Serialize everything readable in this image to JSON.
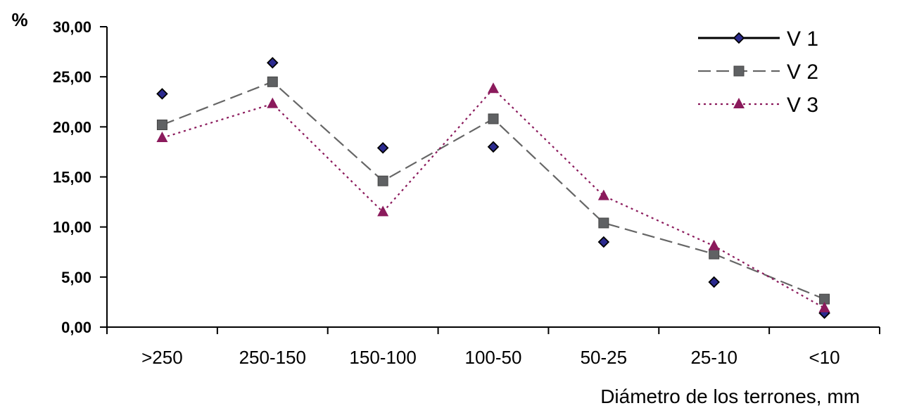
{
  "chart_data": {
    "type": "line",
    "y_unit": "%",
    "xlabel": "Diámetro de los terrones",
    "xlabel_unit": ", mm",
    "categories": [
      ">250",
      "250-150",
      "150-100",
      "100-50",
      "50-25",
      "25-10",
      "<10"
    ],
    "ylim": [
      0,
      30
    ],
    "yticks": [
      "0,00",
      "5,00",
      "10,00",
      "15,00",
      "20,00",
      "25,00",
      "30,00"
    ],
    "ytick_values": [
      0,
      5,
      10,
      15,
      20,
      25,
      30
    ],
    "grid": false,
    "legend_position": "top-right",
    "series": [
      {
        "name": "V 1",
        "values": [
          23.3,
          26.4,
          17.9,
          18.0,
          8.5,
          4.5,
          1.4
        ],
        "color": "#000000",
        "marker": "diamond",
        "marker_fill": "#2b2a8f",
        "line": "none"
      },
      {
        "name": "V 2",
        "values": [
          20.2,
          24.5,
          14.6,
          20.8,
          10.4,
          7.3,
          2.8
        ],
        "color": "#666666",
        "marker": "square",
        "marker_fill": "#5f6163",
        "line": "dashed"
      },
      {
        "name": "V 3",
        "values": [
          18.9,
          22.3,
          11.5,
          23.8,
          13.1,
          8.1,
          1.9
        ],
        "color": "#8b1a5c",
        "marker": "triangle",
        "marker_fill": "#8b1a5c",
        "line": "dotted"
      }
    ],
    "legend_line_styles": [
      "solid",
      "dashed",
      "dotted"
    ]
  }
}
